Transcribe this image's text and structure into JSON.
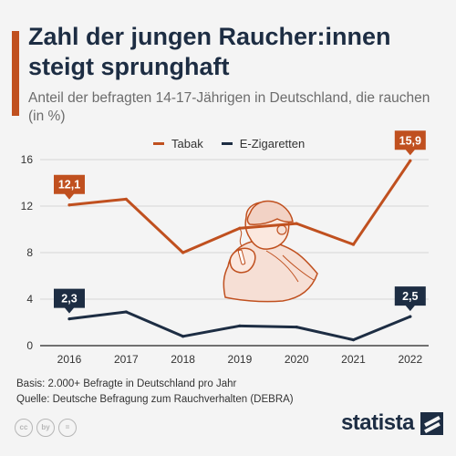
{
  "header": {
    "title": "Zahl der jungen Raucher:innen steigt sprunghaft",
    "subtitle": "Anteil der befragten 14-17-Jährigen in Deutschland, die rauchen (in %)"
  },
  "footer": {
    "basis": "Basis: 2.000+ Befragte in Deutschland pro Jahr",
    "source": "Quelle: Deutsche Befragung zum Rauchverhalten (DEBRA)",
    "license_icons": [
      "cc",
      "by",
      "="
    ],
    "brand": "statista"
  },
  "colors": {
    "accent": "#c0501f",
    "tabak": "#c0501f",
    "ezigaretten": "#1d2d43",
    "grid": "#d6d6d6",
    "illustration_fill": "#f6dfd5",
    "illustration_stroke": "#c0501f"
  },
  "illustration": {
    "icon": "smoking-person-illustration"
  },
  "chart_data": {
    "type": "line",
    "categories": [
      "2016",
      "2017",
      "2018",
      "2019",
      "2020",
      "2021",
      "2022"
    ],
    "series": [
      {
        "name": "Tabak",
        "values": [
          12.1,
          12.6,
          8.0,
          10.1,
          10.5,
          8.7,
          15.9
        ],
        "color": "#c0501f"
      },
      {
        "name": "E-Zigaretten",
        "values": [
          2.3,
          2.9,
          0.8,
          1.7,
          1.6,
          0.5,
          2.5
        ],
        "color": "#1d2d43"
      }
    ],
    "annotations": [
      {
        "series": "Tabak",
        "x": "2016",
        "label": "12,1"
      },
      {
        "series": "Tabak",
        "x": "2022",
        "label": "15,9"
      },
      {
        "series": "E-Zigaretten",
        "x": "2016",
        "label": "2,3"
      },
      {
        "series": "E-Zigaretten",
        "x": "2022",
        "label": "2,5"
      }
    ],
    "yticks": [
      0,
      4,
      8,
      12,
      16
    ],
    "ytick_labels": [
      "0",
      "4",
      "8",
      "12",
      "16"
    ],
    "ylim": [
      0,
      16
    ],
    "grid": true,
    "legend_position": "top-center"
  }
}
